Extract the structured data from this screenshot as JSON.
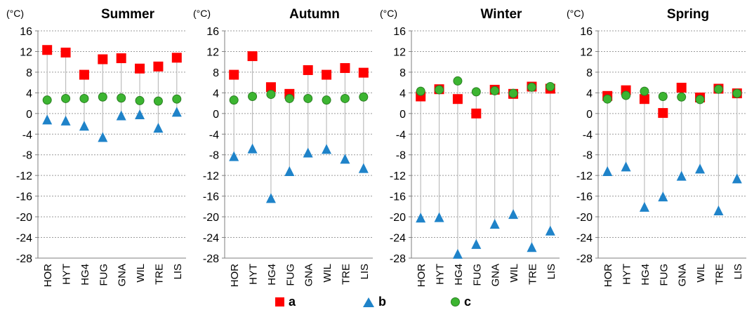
{
  "chart_data": [
    {
      "type": "scatter",
      "title": "Summer",
      "unit": "(°C)",
      "categories": [
        "HOR",
        "HYT",
        "HG4",
        "FUG",
        "GNA",
        "WIL",
        "TRE",
        "LIS"
      ],
      "ylim": [
        -28,
        16
      ],
      "yticks": [
        16,
        12,
        8,
        4,
        0,
        -4,
        -8,
        -12,
        -16,
        -20,
        -24,
        -28
      ],
      "grid": true,
      "series": [
        {
          "name": "a",
          "marker": "square",
          "color": "#ff0000",
          "values": [
            12.3,
            11.8,
            7.5,
            10.5,
            10.7,
            8.7,
            9.1,
            10.8
          ]
        },
        {
          "name": "b",
          "marker": "triangle",
          "color": "#1f83c9",
          "values": [
            -1.3,
            -1.5,
            -2.5,
            -4.7,
            -0.5,
            -0.3,
            -2.9,
            0.2
          ]
        },
        {
          "name": "c",
          "marker": "circle",
          "color": "#3cb531",
          "values": [
            2.6,
            2.9,
            2.9,
            3.2,
            3.0,
            2.5,
            2.4,
            2.8
          ]
        }
      ]
    },
    {
      "type": "scatter",
      "title": "Autumn",
      "unit": "(°C)",
      "categories": [
        "HOR",
        "HYT",
        "HG4",
        "FUG",
        "GNA",
        "WIL",
        "TRE",
        "LIS"
      ],
      "ylim": [
        -28,
        16
      ],
      "yticks": [
        16,
        12,
        8,
        4,
        0,
        -4,
        -8,
        -12,
        -16,
        -20,
        -24,
        -28
      ],
      "grid": true,
      "series": [
        {
          "name": "a",
          "marker": "square",
          "color": "#ff0000",
          "values": [
            7.5,
            11.1,
            5.1,
            3.8,
            8.4,
            7.5,
            8.8,
            7.9
          ]
        },
        {
          "name": "b",
          "marker": "triangle",
          "color": "#1f83c9",
          "values": [
            -8.4,
            -6.9,
            -16.5,
            -11.3,
            -7.7,
            -7.0,
            -8.9,
            -10.7
          ]
        },
        {
          "name": "c",
          "marker": "circle",
          "color": "#3cb531",
          "values": [
            2.6,
            3.3,
            3.7,
            2.9,
            2.9,
            2.6,
            2.9,
            3.2
          ]
        }
      ]
    },
    {
      "type": "scatter",
      "title": "Winter",
      "unit": "(°C)",
      "categories": [
        "HOR",
        "HYT",
        "HG4",
        "FUG",
        "GNA",
        "WIL",
        "TRE",
        "LIS"
      ],
      "ylim": [
        -28,
        16
      ],
      "yticks": [
        16,
        12,
        8,
        4,
        0,
        -4,
        -8,
        -12,
        -16,
        -20,
        -24,
        -28
      ],
      "grid": true,
      "series": [
        {
          "name": "a",
          "marker": "square",
          "color": "#ff0000",
          "values": [
            3.3,
            4.7,
            2.8,
            0.0,
            4.6,
            3.8,
            5.2,
            4.8
          ]
        },
        {
          "name": "b",
          "marker": "triangle",
          "color": "#1f83c9",
          "values": [
            -20.3,
            -20.2,
            -27.3,
            -25.4,
            -21.5,
            -19.6,
            -26.0,
            -22.8
          ]
        },
        {
          "name": "c",
          "marker": "circle",
          "color": "#3cb531",
          "values": [
            4.3,
            4.6,
            6.3,
            4.2,
            4.4,
            3.9,
            5.1,
            5.2
          ]
        }
      ]
    },
    {
      "type": "scatter",
      "title": "Spring",
      "unit": "(°C)",
      "categories": [
        "HOR",
        "HYT",
        "HG4",
        "FUG",
        "GNA",
        "WIL",
        "TRE",
        "LIS"
      ],
      "ylim": [
        -28,
        16
      ],
      "yticks": [
        16,
        12,
        8,
        4,
        0,
        -4,
        -8,
        -12,
        -16,
        -20,
        -24,
        -28
      ],
      "grid": true,
      "series": [
        {
          "name": "a",
          "marker": "square",
          "color": "#ff0000",
          "values": [
            3.4,
            4.5,
            2.8,
            0.1,
            5.0,
            3.1,
            4.8,
            3.9
          ]
        },
        {
          "name": "b",
          "marker": "triangle",
          "color": "#1f83c9",
          "values": [
            -11.3,
            -10.4,
            -18.2,
            -16.2,
            -12.2,
            -10.8,
            -18.9,
            -12.7
          ]
        },
        {
          "name": "c",
          "marker": "circle",
          "color": "#3cb531",
          "values": [
            2.8,
            3.5,
            4.3,
            3.3,
            3.2,
            2.7,
            4.7,
            3.9
          ]
        }
      ]
    }
  ],
  "legend": {
    "position": "bottom",
    "items": [
      {
        "label": "a",
        "marker": "square",
        "color": "#ff0000"
      },
      {
        "label": "b",
        "marker": "triangle",
        "color": "#1f83c9"
      },
      {
        "label": "c",
        "marker": "circle",
        "color": "#3cb531"
      }
    ]
  }
}
